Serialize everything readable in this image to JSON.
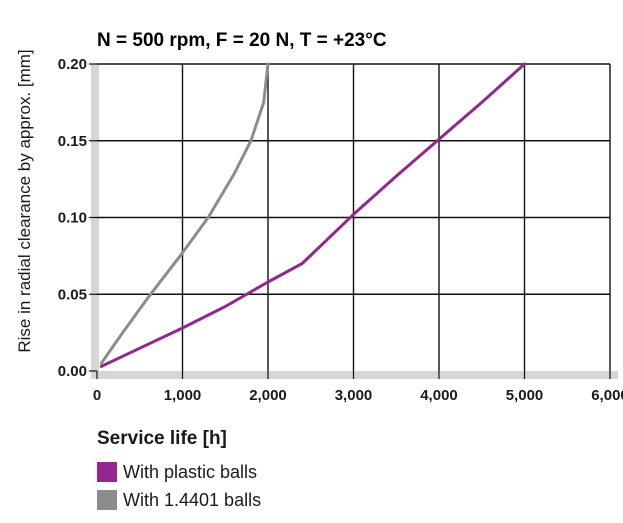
{
  "chart_data": {
    "type": "line",
    "title": "N = 500 rpm, F = 20 N, T = +23°C",
    "xlabel": "Service life [h]",
    "ylabel": "Rise in radial clearance by approx. [mm]",
    "xlim": [
      0,
      6000
    ],
    "ylim": [
      0,
      0.2
    ],
    "x_ticks": [
      "0",
      "1,000",
      "2,000",
      "3,000",
      "4,000",
      "5,000",
      "6,000"
    ],
    "y_ticks": [
      "0.00",
      "0.05",
      "0.10",
      "0.15",
      "0.20"
    ],
    "grid": true,
    "legend_position": "bottom",
    "series": [
      {
        "name": "With plastic balls",
        "color": "#93278f",
        "x": [
          50,
          1000,
          1500,
          2000,
          2400,
          3000,
          3500,
          4000,
          4500,
          5000
        ],
        "y": [
          0.003,
          0.028,
          0.042,
          0.058,
          0.07,
          0.102,
          0.127,
          0.151,
          0.175,
          0.2
        ]
      },
      {
        "name": "With 1.4401 balls",
        "color": "#8c8c8c",
        "x": [
          50,
          300,
          600,
          1000,
          1300,
          1600,
          1800,
          1950,
          2000
        ],
        "y": [
          0.005,
          0.025,
          0.048,
          0.077,
          0.1,
          0.128,
          0.15,
          0.175,
          0.2
        ]
      }
    ]
  }
}
